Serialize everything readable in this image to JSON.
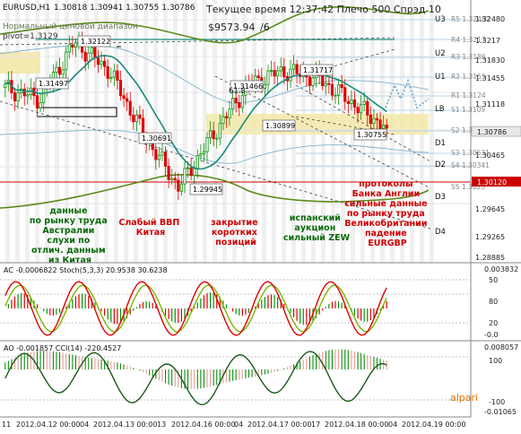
{
  "header": {
    "symbol": "EURUSD,H1",
    "ohlc": "1.30818 1.30941 1.30755 1.30786",
    "time_text": "Текущее время 12:37:42 Плечо 500  Спрэд 10",
    "balance": "$9573.94",
    "balance_extra": "/6",
    "channel_label": "Нормальный ценовой диапазон",
    "pivot": "pivot=1.3129"
  },
  "price_labels": [
    "1.31497",
    "1.32122",
    "1.31466",
    "1.31717",
    "1.30691",
    "1.30899",
    "1.30755",
    "1.29945"
  ],
  "level_tags": {
    "u3": "U3",
    "u2": "U2",
    "u1": "U1",
    "lb": "LB",
    "d1": "D1",
    "d2": "D2",
    "d3": "D3",
    "d4": "D4",
    "l618": "61.8"
  },
  "level_prices": {
    "r5": "R5 1.32482",
    "r4": "R4 1.3217",
    "r3": "R3 1.3186",
    "r2": "R2 1.3155",
    "r1": "R1 1.3124",
    "s1": "S1 1.3109",
    "s2": "S2 1.3091",
    "s3": "S3 1.30531",
    "s4": "S4 1.30341",
    "s5": "S5 1.3025"
  },
  "annotations": {
    "a1": [
      "данные",
      "по рынку труда",
      "Австралии",
      "слухи по",
      "отлич. данным",
      "из Китая"
    ],
    "a2": [
      "Слабый ВВП",
      "Китая"
    ],
    "a3": [
      "закрытие",
      "коротких",
      "позиций"
    ],
    "a4": [
      "испанский",
      "аукцион",
      "сильный ZEW"
    ],
    "a5": [
      "протоколы",
      "Банка Англии",
      "сильные данные",
      "по рынку труда",
      "Великобритании",
      "падение"
    ],
    "a5_last": "EURGBP"
  },
  "right_axis_main": [
    "1.32480",
    "1.3217",
    "1.31830",
    "1.31455",
    "1.31118",
    "1.30786",
    "1.30465",
    "1.30120",
    "1.29645",
    "1.29265",
    "1.28885"
  ],
  "current_price_tag": "1.30786",
  "red_level_tag": "1.30120",
  "ac_panel": {
    "title": "AC -0.0006822  Stoch(5,3,3) 20.9538 30.6238",
    "axis": [
      "0.003832",
      "50",
      "80",
      "20",
      "-0.0"
    ]
  },
  "ao_panel": {
    "title": "AO -0.001857  CCI(14) -220.4527",
    "axis": [
      "0.008057",
      "100",
      "-100",
      "-0.01065"
    ]
  },
  "x_axis": [
    "11",
    "2012.04.12 00:00",
    "04",
    "2012.04.13 00:00",
    "13",
    "2012.04.16 00:00",
    "04",
    "2012.04.17 00:00",
    "17",
    "2012.04.18 00:00",
    "04",
    "2012.04.19 00:00"
  ],
  "logo": "alpari",
  "colors": {
    "bull": "#0a8f0a",
    "bear": "#e00000",
    "ma": "#1a8a7a",
    "channel": "#5a8a1a",
    "stoch_k": "#e00000",
    "stoch_d": "#7ab800",
    "cci": "#1a5a1a"
  },
  "chart_data": {
    "type": "candlestick",
    "series_name": "EURUSD,H1",
    "close_samples": [
      {
        "x": "2012.04.11",
        "y": 1.3135
      },
      {
        "x": "2012.04.12 00:00",
        "y": 1.312
      },
      {
        "x": "2012.04.12 12:00",
        "y": 1.32
      },
      {
        "x": "2012.04.13 00:00",
        "y": 1.316
      },
      {
        "x": "2012.04.13 12:00",
        "y": 1.3069
      },
      {
        "x": "2012.04.16 00:00",
        "y": 1.2995
      },
      {
        "x": "2012.04.16 12:00",
        "y": 1.307
      },
      {
        "x": "2012.04.17 00:00",
        "y": 1.314
      },
      {
        "x": "2012.04.17 12:00",
        "y": 1.316
      },
      {
        "x": "2012.04.18 00:00",
        "y": 1.315
      },
      {
        "x": "2012.04.18 12:00",
        "y": 1.3115
      },
      {
        "x": "2012.04.19 12:37",
        "y": 1.30786
      }
    ],
    "ylim": [
      1.2888,
      1.326
    ],
    "current_price": 1.30786,
    "pivot": 1.3129
  }
}
